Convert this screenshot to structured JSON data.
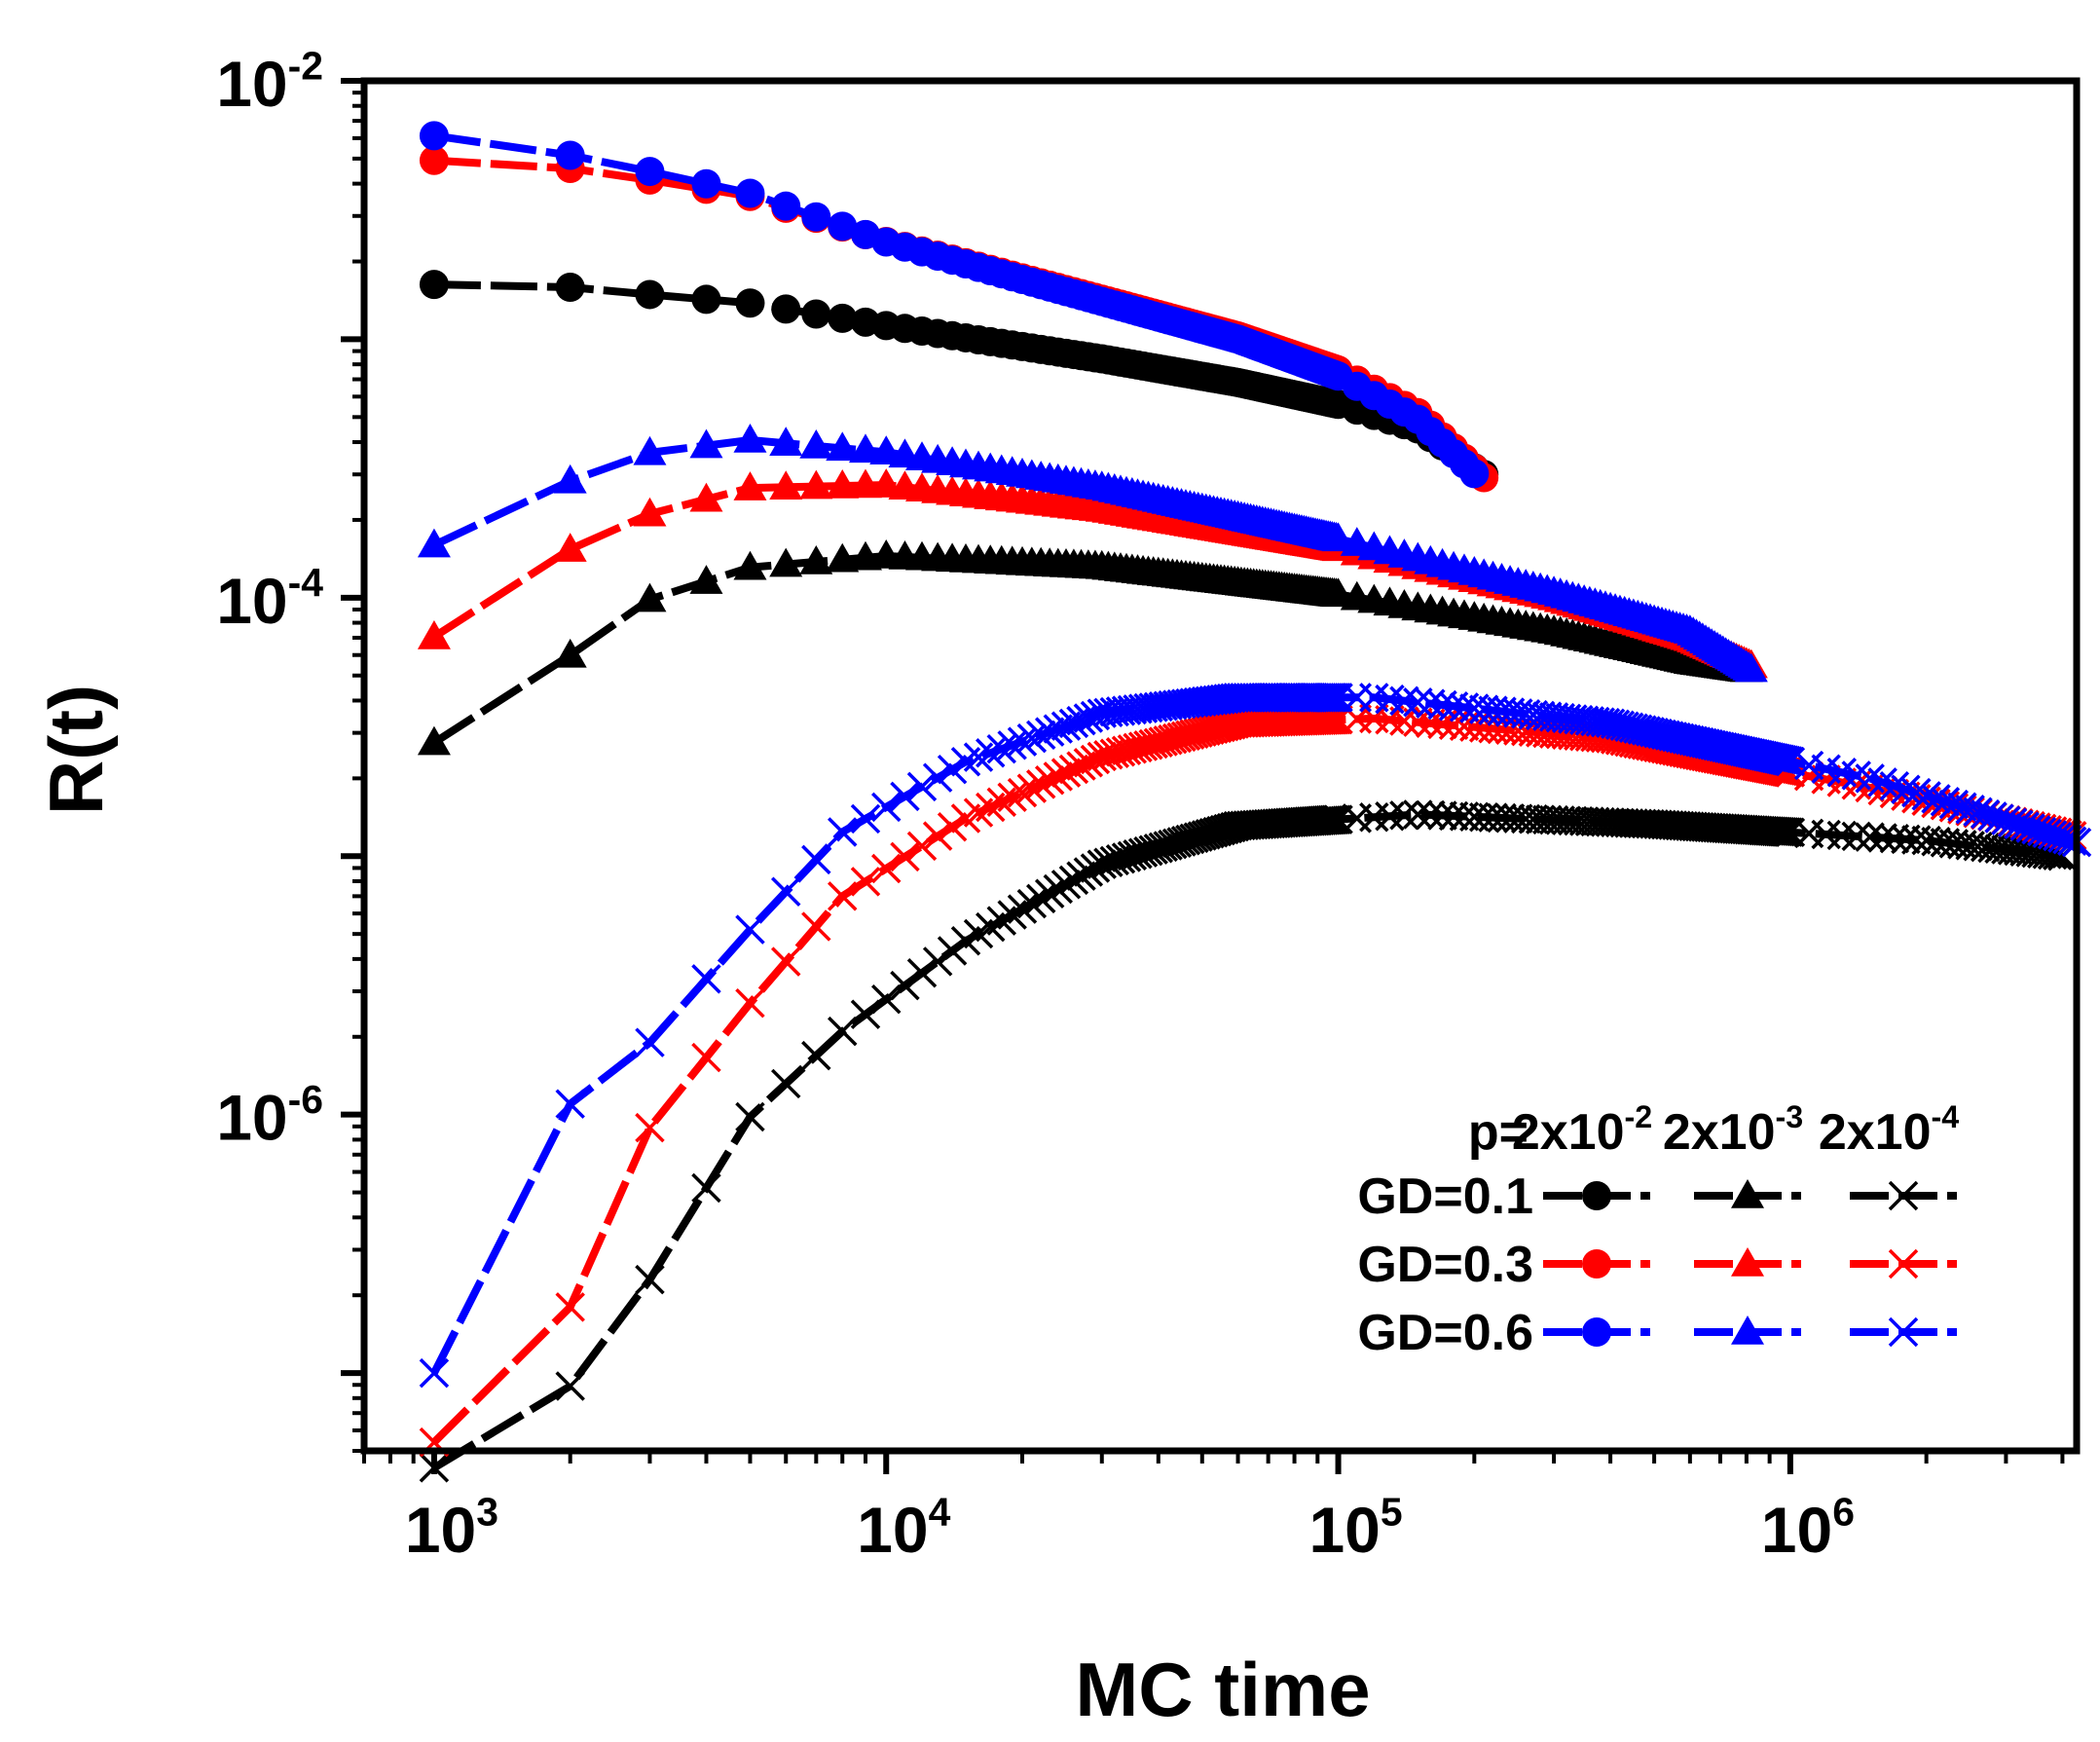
{
  "chart_data": {
    "type": "line",
    "xscale": "log",
    "yscale": "log",
    "xlabel": "MC time",
    "ylabel": "R(t)",
    "xlim": [
      700,
      4300000
    ],
    "ylim": [
      5e-08,
      0.01
    ],
    "x_ticks": [
      {
        "value": 1000,
        "base": "10",
        "exp": "3"
      },
      {
        "value": 10000,
        "base": "10",
        "exp": "4"
      },
      {
        "value": 100000,
        "base": "10",
        "exp": "5"
      },
      {
        "value": 1000000,
        "base": "10",
        "exp": "6"
      }
    ],
    "y_ticks": [
      {
        "value": 0.01,
        "base": "10",
        "exp": "-2"
      },
      {
        "value": 0.0001,
        "base": "10",
        "exp": "-4"
      },
      {
        "value": 1e-06,
        "base": "10",
        "exp": "-6"
      }
    ],
    "legend": {
      "position": "bottom-right",
      "header_prefix": "p=",
      "columns": [
        {
          "base": "2x10",
          "exp": "-2",
          "marker": "circle"
        },
        {
          "base": "2x10",
          "exp": "-3",
          "marker": "triangle"
        },
        {
          "base": "2x10",
          "exp": "-4",
          "marker": "cross"
        }
      ],
      "rows": [
        {
          "label": "GD=0.1",
          "color": "#000000"
        },
        {
          "label": "GD=0.3",
          "color": "#ff0000"
        },
        {
          "label": "GD=0.6",
          "color": "#0000ff"
        }
      ]
    },
    "series": [
      {
        "name": "GD=0.1, p=2x10^-2",
        "color": "#000000",
        "marker": "circle",
        "points": [
          [
            1000,
            0.00163
          ],
          [
            2000,
            0.00159
          ],
          [
            3000,
            0.00149
          ],
          [
            5000,
            0.00138
          ],
          [
            10000,
            0.00113
          ],
          [
            30000,
            0.00084
          ],
          [
            60000,
            0.00068
          ],
          [
            100000,
            0.00056
          ],
          [
            150000,
            0.00045
          ],
          [
            210000,
            0.0003
          ]
        ]
      },
      {
        "name": "GD=0.3, p=2x10^-2",
        "color": "#ff0000",
        "marker": "circle",
        "points": [
          [
            1000,
            0.00492
          ],
          [
            2000,
            0.00458
          ],
          [
            3000,
            0.00413
          ],
          [
            5000,
            0.00357
          ],
          [
            10000,
            0.00239
          ],
          [
            30000,
            0.00143
          ],
          [
            60000,
            0.00103
          ],
          [
            100000,
            0.00076
          ],
          [
            150000,
            0.00052
          ],
          [
            215000,
            0.00028
          ]
        ]
      },
      {
        "name": "GD=0.6, p=2x10^-2",
        "color": "#0000ff",
        "marker": "circle",
        "points": [
          [
            1000,
            0.00613
          ],
          [
            2000,
            0.00515
          ],
          [
            3000,
            0.00446
          ],
          [
            5000,
            0.00367
          ],
          [
            10000,
            0.00238
          ],
          [
            30000,
            0.0014
          ],
          [
            60000,
            0.001
          ],
          [
            100000,
            0.00072
          ],
          [
            150000,
            0.00049
          ],
          [
            205000,
            0.00029
          ]
        ]
      },
      {
        "name": "GD=0.1, p=2x10^-3",
        "color": "#000000",
        "marker": "triangle",
        "points": [
          [
            1000,
            2.75e-05
          ],
          [
            2000,
            5.99e-05
          ],
          [
            3000,
            9.85e-05
          ],
          [
            5000,
            0.000131
          ],
          [
            10000,
            0.000145
          ],
          [
            30000,
            0.000132
          ],
          [
            100000,
            0.000103
          ],
          [
            300000,
            7.43e-05
          ],
          [
            600000,
            5.67e-05
          ],
          [
            800000,
            5.27e-05
          ]
        ]
      },
      {
        "name": "GD=0.3, p=2x10^-3",
        "color": "#ff0000",
        "marker": "triangle",
        "points": [
          [
            1000,
            7.06e-05
          ],
          [
            2000,
            0.000154
          ],
          [
            3000,
            0.000211
          ],
          [
            5000,
            0.000266
          ],
          [
            10000,
            0.000273
          ],
          [
            30000,
            0.00022
          ],
          [
            100000,
            0.000155
          ],
          [
            300000,
            0.0001
          ],
          [
            600000,
            6.95e-05
          ],
          [
            820000,
            5.46e-05
          ]
        ]
      },
      {
        "name": "GD=0.6, p=2x10^-3",
        "color": "#0000ff",
        "marker": "triangle",
        "points": [
          [
            1000,
            0.00016
          ],
          [
            2000,
            0.000283
          ],
          [
            3000,
            0.000364
          ],
          [
            5000,
            0.000407
          ],
          [
            10000,
            0.000366
          ],
          [
            30000,
            0.000268
          ],
          [
            100000,
            0.000169
          ],
          [
            300000,
            0.000105
          ],
          [
            600000,
            7.43e-05
          ],
          [
            820000,
            5.27e-05
          ]
        ]
      },
      {
        "name": "GD=0.1, p=2x10^-4",
        "color": "#000000",
        "marker": "cross",
        "points": [
          [
            1000,
            4.3e-08
          ],
          [
            2000,
            8.9e-08
          ],
          [
            3000,
            2.3e-07
          ],
          [
            5000,
            9.8e-07
          ],
          [
            8000,
            2.1e-06
          ],
          [
            15000,
            4.7e-06
          ],
          [
            30000,
            9.3e-06
          ],
          [
            60000,
            1.31e-05
          ],
          [
            150000,
            1.45e-05
          ],
          [
            500000,
            1.33e-05
          ],
          [
            2000000,
            1.15e-05
          ],
          [
            4000000,
            1e-05
          ]
        ]
      },
      {
        "name": "GD=0.3, p=2x10^-4",
        "color": "#ff0000",
        "marker": "cross",
        "points": [
          [
            1000,
            5.4e-08
          ],
          [
            2000,
            1.8e-07
          ],
          [
            3000,
            8.9e-07
          ],
          [
            5000,
            2.7e-06
          ],
          [
            8000,
            7e-06
          ],
          [
            15000,
            1.4e-05
          ],
          [
            30000,
            2.43e-05
          ],
          [
            60000,
            3.27e-05
          ],
          [
            120000,
            3.41e-05
          ],
          [
            400000,
            2.85e-05
          ],
          [
            1500000,
            1.84e-05
          ],
          [
            4200000,
            1.2e-05
          ]
        ]
      },
      {
        "name": "GD=0.6, p=2x10^-4",
        "color": "#0000ff",
        "marker": "cross",
        "points": [
          [
            1000,
            1e-07
          ],
          [
            2000,
            1.1e-06
          ],
          [
            3000,
            1.9e-06
          ],
          [
            5000,
            5.2e-06
          ],
          [
            8000,
            1.24e-05
          ],
          [
            15000,
            2.32e-05
          ],
          [
            30000,
            3.57e-05
          ],
          [
            60000,
            4.11e-05
          ],
          [
            120000,
            4.11e-05
          ],
          [
            400000,
            3.27e-05
          ],
          [
            1500000,
            2e-05
          ],
          [
            4300000,
            1.13e-05
          ]
        ]
      }
    ]
  }
}
